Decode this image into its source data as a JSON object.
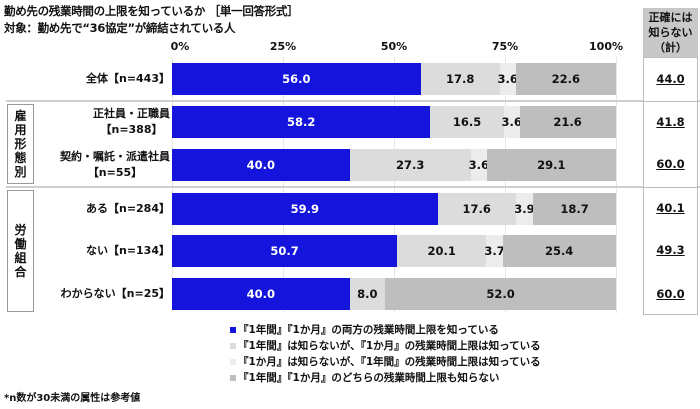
{
  "title": {
    "line1": "勤め先の残業時間の上限を知っているか ［単一回答形式］",
    "line2": "対象：勤め先で“36協定”が締結されている人"
  },
  "axis_ticks": [
    "0%",
    "25%",
    "50%",
    "75%",
    "100%"
  ],
  "right_column": {
    "header_lines": [
      "正確には",
      "知らない",
      "（計）"
    ],
    "values": [
      "44.0",
      "41.8",
      "60.0",
      "40.1",
      "49.3",
      "60.0"
    ]
  },
  "groups": [
    {
      "label_chars": [
        "雇",
        "用",
        "形",
        "態",
        "別"
      ]
    },
    {
      "label_chars": [
        "労",
        "働",
        "組",
        "合"
      ]
    }
  ],
  "rows": [
    {
      "label": "全体【n=443】",
      "label2": "",
      "values": [
        "56.0",
        "17.8",
        "3.6",
        "22.6"
      ]
    },
    {
      "label": "正社員・正職員",
      "label2": "【n=388】",
      "values": [
        "58.2",
        "16.5",
        "3.6",
        "21.6"
      ]
    },
    {
      "label": "契約・嘱託・派遣社員",
      "label2": "【n=55】",
      "values": [
        "40.0",
        "27.3",
        "3.6",
        "29.1"
      ]
    },
    {
      "label": "ある【n=284】",
      "label2": "",
      "values": [
        "59.9",
        "17.6",
        "3.9",
        "18.7"
      ]
    },
    {
      "label": "ない【n=134】",
      "label2": "",
      "values": [
        "50.7",
        "20.1",
        "3.7",
        "25.4"
      ]
    },
    {
      "label": "わからない【n=25】",
      "label2": "",
      "values": [
        "40.0",
        "8.0",
        "",
        "52.0"
      ]
    }
  ],
  "legend": [
    {
      "label": "『1年間』『1か月』の両方の残業時間上限を知っている",
      "color": "#1414dc"
    },
    {
      "label": "『1年間』は知らないが、『1か月』の残業時間上限は知っている",
      "color": "#dcdcdc"
    },
    {
      "label": "『1か月』は知らないが、『1年間』の残業時間上限は知っている",
      "color": "#ececec"
    },
    {
      "label": "『1年間』『1か月』のどちらの残業時間上限も知らない",
      "color": "#bebebe"
    }
  ],
  "footnote": "*n数が30未満の属性は参考値",
  "chart_data": {
    "type": "bar",
    "orientation": "horizontal-stacked-100",
    "title": "勤め先の残業時間の上限を知っているか ［単一回答形式］",
    "subtitle": "対象：勤め先で“36協定”が締結されている人",
    "categories": [
      "全体【n=443】",
      "正社員・正職員【n=388】",
      "契約・嘱託・派遣社員【n=55】",
      "ある【n=284】",
      "ない【n=134】",
      "わからない【n=25】"
    ],
    "category_groups": [
      {
        "name": "雇用形態別",
        "members": [
          "正社員・正職員【n=388】",
          "契約・嘱託・派遣社員【n=55】"
        ]
      },
      {
        "name": "労働組合",
        "members": [
          "ある【n=284】",
          "ない【n=134】",
          "わからない【n=25】"
        ]
      }
    ],
    "series": [
      {
        "name": "『1年間』『1か月』の両方の残業時間上限を知っている",
        "color": "#1414dc",
        "values": [
          56.0,
          58.2,
          40.0,
          59.9,
          50.7,
          40.0
        ]
      },
      {
        "name": "『1年間』は知らないが、『1か月』の残業時間上限は知っている",
        "color": "#dcdcdc",
        "values": [
          17.8,
          16.5,
          27.3,
          17.6,
          20.1,
          8.0
        ]
      },
      {
        "name": "『1か月』は知らないが、『1年間』の残業時間上限は知っている",
        "color": "#ececec",
        "values": [
          3.6,
          3.6,
          3.6,
          3.9,
          3.7,
          0
        ]
      },
      {
        "name": "『1年間』『1か月』のどちらの残業時間上限も知らない",
        "color": "#bebebe",
        "values": [
          22.6,
          21.6,
          29.1,
          18.7,
          25.4,
          52.0
        ]
      }
    ],
    "side_column": {
      "name": "正確には知らない（計）",
      "values": [
        44.0,
        41.8,
        60.0,
        40.1,
        49.3,
        60.0
      ]
    },
    "xlabel": "",
    "ylabel": "",
    "xlim": [
      0,
      100
    ],
    "x_ticks": [
      "0%",
      "25%",
      "50%",
      "75%",
      "100%"
    ],
    "grid": true,
    "legend_position": "bottom",
    "footnote": "*n数が30未満の属性は参考値"
  }
}
